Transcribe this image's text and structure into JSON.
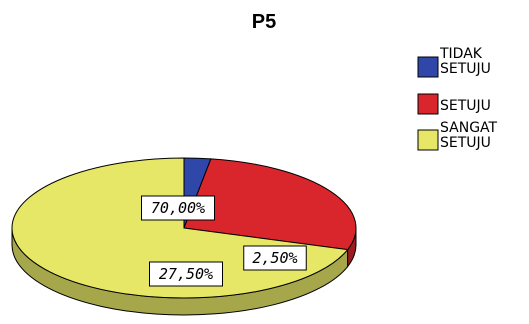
{
  "chart_data": {
    "type": "pie",
    "title": "P5",
    "categories": [
      "TIDAK SETUJU",
      "SETUJU",
      "SANGAT SETUJU"
    ],
    "values": [
      2.5,
      27.5,
      70.0
    ],
    "data_labels": [
      "2,50%",
      "27,50%",
      "70,00%"
    ],
    "colors": [
      "#2f47a8",
      "#d9262c",
      "#e6e667"
    ],
    "legend": {
      "placement": "right",
      "entries": [
        {
          "lines": [
            "TIDAK",
            "SETUJU"
          ],
          "color": "#2f47a8"
        },
        {
          "lines": [
            "SETUJU"
          ],
          "color": "#d9262c"
        },
        {
          "lines": [
            "SANGAT",
            "SETUJU"
          ],
          "color": "#e6e667"
        }
      ]
    },
    "style": "3d-pie"
  }
}
